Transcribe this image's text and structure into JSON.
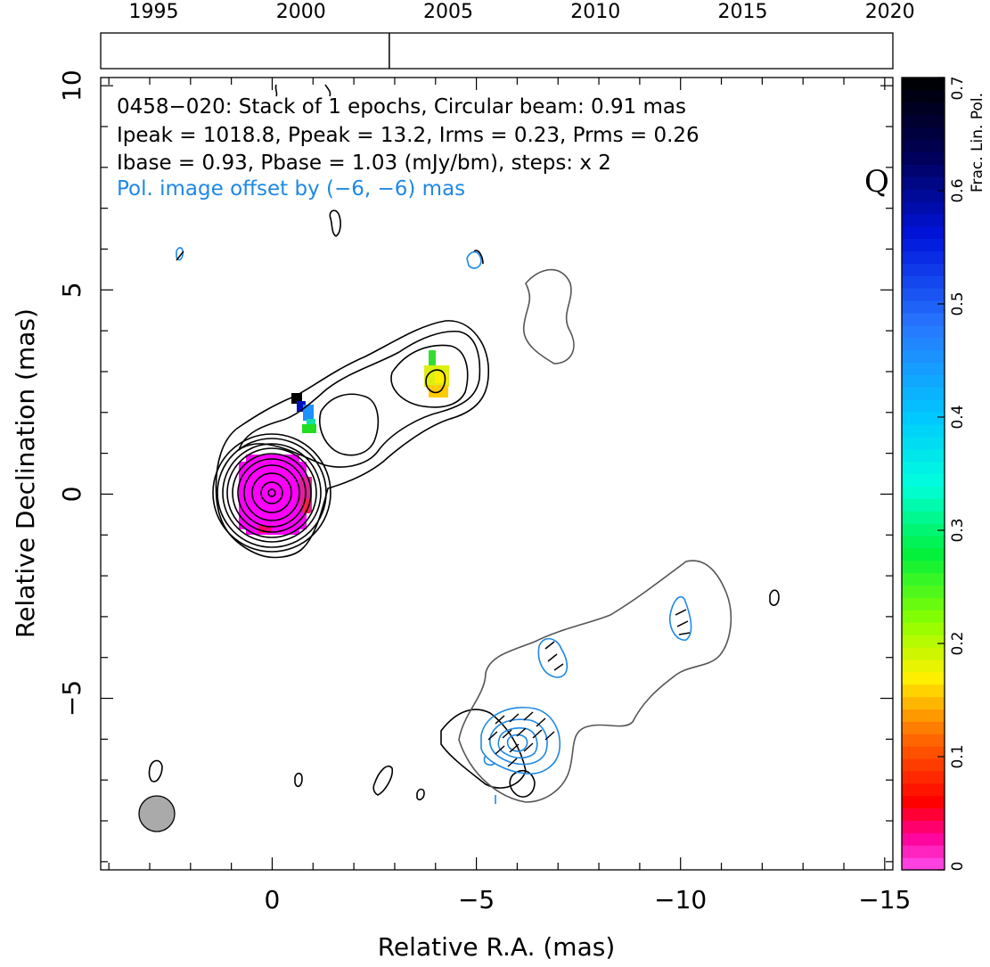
{
  "timeline": {
    "years": [
      "1995",
      "2000",
      "2005",
      "2010",
      "2015",
      "2020"
    ],
    "year_values": [
      1995,
      2000,
      2005,
      2010,
      2015,
      2020
    ],
    "range": [
      1993.2,
      2020.1
    ],
    "epoch_markers": [
      2003.0
    ]
  },
  "info": {
    "line1": "0458−020: Stack of 1 epochs, Circular beam: 0.91 mas",
    "line2": "Ipeak = 1018.8, Ppeak = 13.2, Irms = 0.23, Prms = 0.26",
    "line3": "Ibase = 0.93, Pbase = 1.03 (mJy/bm), steps: x 2",
    "line4": "Pol. image offset by (−6, −6) mas",
    "band": "Q"
  },
  "colors": {
    "stokes_i_contour": "#000000",
    "outer_contour": "#555555",
    "pol_contour": "#1e88e5",
    "pol_info_text": "#1e88e5",
    "beam_fill": "#aaaaaa"
  },
  "colorbar": {
    "label": "Frac. Lin. Pol.",
    "ticks": [
      "0",
      "0.1",
      "0.2",
      "0.3",
      "0.4",
      "0.5",
      "0.6",
      "0.7"
    ],
    "tick_values": [
      0,
      0.1,
      0.2,
      0.3,
      0.4,
      0.5,
      0.6,
      0.7
    ],
    "range": [
      0,
      0.7
    ]
  },
  "chart_data": {
    "type": "heatmap",
    "xlabel": "Relative R.A. (mas)",
    "ylabel": "Relative Declination (mas)",
    "xlim": [
      4.2,
      -15.2
    ],
    "ylim": [
      -9.2,
      10.2
    ],
    "xticks": [
      "0",
      "−5",
      "−10",
      "−15"
    ],
    "xtick_values": [
      0,
      -5,
      -10,
      -15
    ],
    "yticks": [
      "−5",
      "0",
      "5",
      "10"
    ],
    "ytick_values": [
      -5,
      0,
      5,
      10
    ],
    "beam_diameter_mas": 0.91,
    "beam_center": [
      2.8,
      -7.9
    ],
    "pol_patches": [
      {
        "x": 0,
        "y": 0,
        "frac_pol": 0.0
      },
      {
        "x": -0.9,
        "y": 1.8,
        "frac_pol": 0.4
      },
      {
        "x": -4.1,
        "y": 2.9,
        "frac_pol": 0.17
      },
      {
        "x": -0.7,
        "y": 2.3,
        "frac_pol": 0.7
      }
    ]
  }
}
